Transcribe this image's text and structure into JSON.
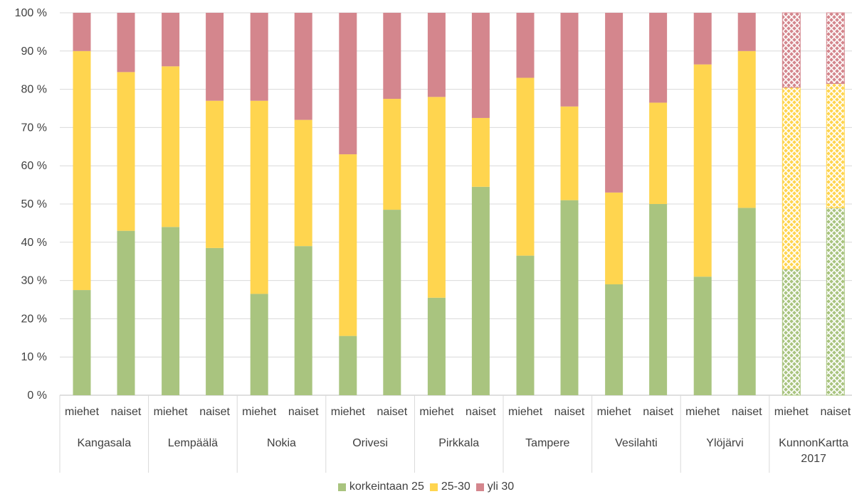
{
  "chart_data": {
    "type": "bar",
    "stacked": true,
    "percent": true,
    "ylim": [
      0,
      100
    ],
    "yticks": [
      "0 %",
      "10 %",
      "20 %",
      "30 %",
      "40 %",
      "50 %",
      "60 %",
      "70 %",
      "80 %",
      "90 %",
      "100 %"
    ],
    "grid": true,
    "legend_position": "bottom",
    "groups": [
      "Kangasala",
      "Lempäälä",
      "Nokia",
      "Orivesi",
      "Pirkkala",
      "Tampere",
      "Vesilahti",
      "Ylöjärvi",
      "KunnonKartta 2017"
    ],
    "subcategories": [
      "miehet",
      "naiset"
    ],
    "series": [
      {
        "name": "korkeintaan 25",
        "color": "#a9c47f",
        "values": [
          27.5,
          43,
          44,
          38.5,
          26.5,
          39,
          15.5,
          48.5,
          25.5,
          54.5,
          36.5,
          51,
          29,
          50,
          31,
          49,
          33,
          49
        ]
      },
      {
        "name": "25-30",
        "color": "#ffd54f",
        "values": [
          62.5,
          41.5,
          42,
          38.5,
          50.5,
          33,
          47.5,
          29,
          52.5,
          18,
          46.5,
          24.5,
          24,
          26.5,
          55.5,
          41,
          47.5,
          32.5
        ]
      },
      {
        "name": "yli 30",
        "color": "#d4868d",
        "values": [
          10,
          15.5,
          14,
          23,
          23,
          28,
          37,
          22.5,
          22,
          27.5,
          17,
          24.5,
          47,
          23.5,
          13.5,
          10,
          19.5,
          18.5
        ]
      }
    ],
    "hatched_group": "KunnonKartta 2017"
  }
}
